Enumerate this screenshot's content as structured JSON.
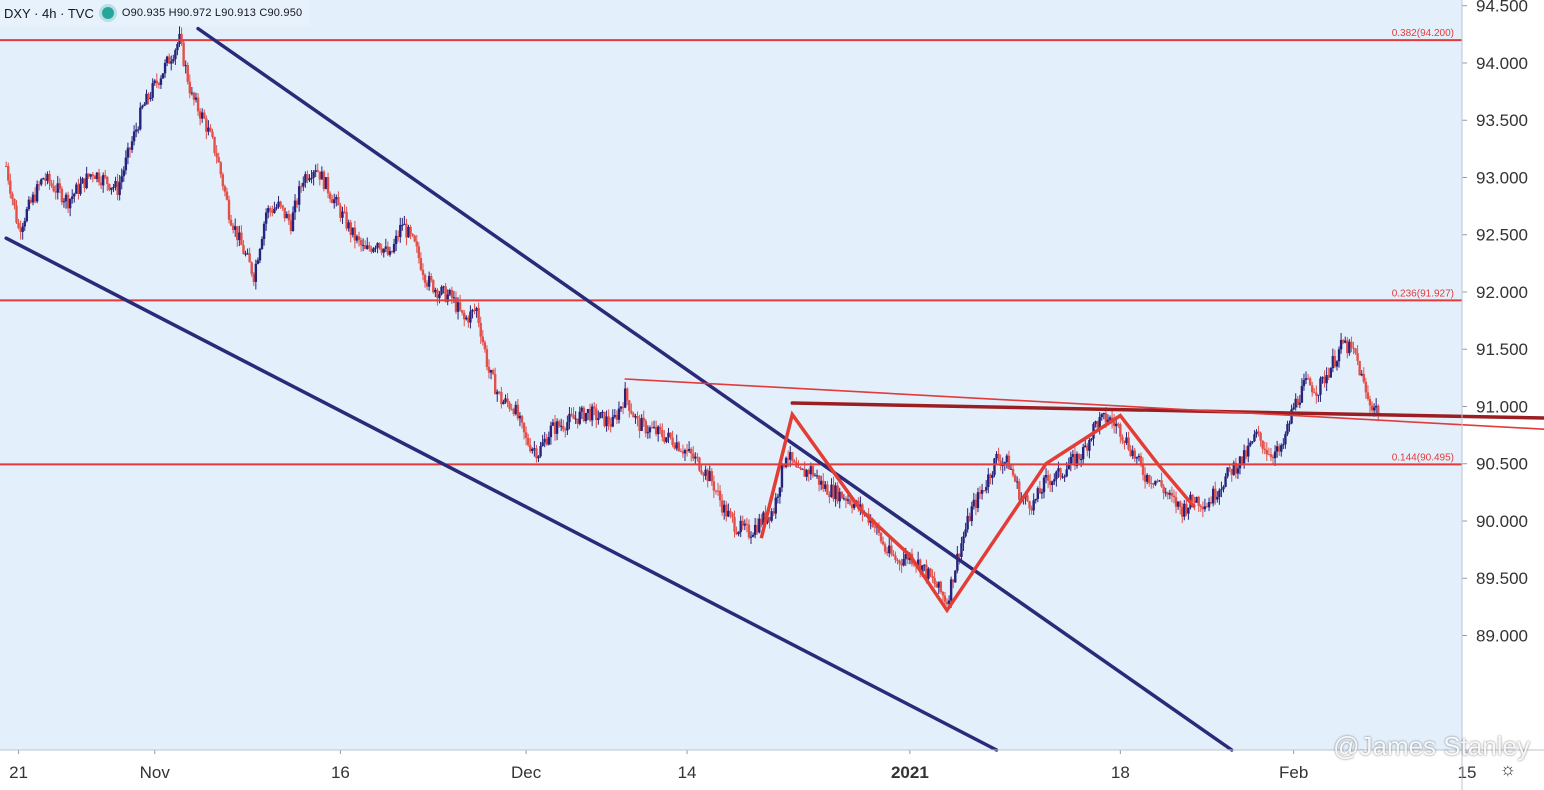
{
  "header": {
    "symbol": "DXY · 4h · TVC",
    "ohlc": "O90.935  H90.972  L90.913  C90.950"
  },
  "watermark": "@James Stanley",
  "colors": {
    "background": "#e3f0fc",
    "bull": "#28237a",
    "bear": "#e2504a",
    "fib": "#e23b3b",
    "channel": "#2b2a78",
    "neckline": "#9b1f22",
    "wedge": "#e33e36"
  },
  "chart_data": {
    "type": "candlestick",
    "symbol": "DXY",
    "timeframe": "4h",
    "ylim": [
      88.0,
      94.55
    ],
    "y_ticks": [
      "94.500",
      "94.000",
      "93.500",
      "93.000",
      "92.500",
      "92.000",
      "91.500",
      "91.000",
      "90.500",
      "90.000",
      "89.500",
      "89.000"
    ],
    "x_ticks": [
      {
        "label": "21",
        "day": -11
      },
      {
        "label": "Nov",
        "day": 0
      },
      {
        "label": "16",
        "day": 15
      },
      {
        "label": "Dec",
        "day": 30
      },
      {
        "label": "14",
        "day": 43
      },
      {
        "label": "2021",
        "day": 61
      },
      {
        "label": "18",
        "day": 78
      },
      {
        "label": "Feb",
        "day": 92
      },
      {
        "label": "15",
        "day": 106
      }
    ],
    "fib_levels": [
      {
        "label": "0.382(94.200)",
        "value": 94.2
      },
      {
        "label": "0.236(91.927)",
        "value": 91.927
      },
      {
        "label": "0.144(90.495)",
        "value": 90.495
      }
    ],
    "trendlines": [
      {
        "name": "channel-upper",
        "from": {
          "day": 3.5,
          "price": 94.3
        },
        "to": {
          "day": 87,
          "price": 88.0
        },
        "style": "channel"
      },
      {
        "name": "channel-lower",
        "from": {
          "day": -12,
          "price": 92.47
        },
        "to": {
          "day": 68,
          "price": 88.0
        },
        "style": "channel"
      },
      {
        "name": "neckline",
        "from": {
          "day": 51.5,
          "price": 91.03
        },
        "to": {
          "day": 121,
          "price": 90.88
        },
        "style": "neckline"
      },
      {
        "name": "thin-resistance",
        "from": {
          "day": 38,
          "price": 91.24
        },
        "to": {
          "day": 121,
          "price": 90.75
        },
        "style": "thin"
      }
    ],
    "wedge_path": [
      {
        "day": 49,
        "price": 89.85
      },
      {
        "day": 51.5,
        "price": 90.93
      },
      {
        "day": 57,
        "price": 90.1
      },
      {
        "day": 61,
        "price": 89.7
      },
      {
        "day": 64,
        "price": 89.22
      },
      {
        "day": 67,
        "price": 89.7
      },
      {
        "day": 72,
        "price": 90.5
      },
      {
        "day": 78,
        "price": 90.92
      },
      {
        "day": 81,
        "price": 90.5
      },
      {
        "day": 84,
        "price": 90.12
      }
    ],
    "price_path": [
      {
        "day": -12,
        "price": 93.1
      },
      {
        "day": -11,
        "price": 92.55
      },
      {
        "day": -9,
        "price": 93.0
      },
      {
        "day": -7,
        "price": 92.8
      },
      {
        "day": -5,
        "price": 93.05
      },
      {
        "day": -3,
        "price": 92.9
      },
      {
        "day": -1,
        "price": 93.6
      },
      {
        "day": 1,
        "price": 94.0
      },
      {
        "day": 2,
        "price": 94.2
      },
      {
        "day": 3,
        "price": 93.7
      },
      {
        "day": 4,
        "price": 93.5
      },
      {
        "day": 5,
        "price": 93.2
      },
      {
        "day": 6,
        "price": 92.7
      },
      {
        "day": 7,
        "price": 92.4
      },
      {
        "day": 8,
        "price": 92.15
      },
      {
        "day": 9,
        "price": 92.7
      },
      {
        "day": 10,
        "price": 92.75
      },
      {
        "day": 11,
        "price": 92.6
      },
      {
        "day": 12,
        "price": 93.0
      },
      {
        "day": 13,
        "price": 93.1
      },
      {
        "day": 14,
        "price": 92.9
      },
      {
        "day": 15,
        "price": 92.7
      },
      {
        "day": 16,
        "price": 92.5
      },
      {
        "day": 17,
        "price": 92.35
      },
      {
        "day": 18,
        "price": 92.45
      },
      {
        "day": 19,
        "price": 92.3
      },
      {
        "day": 20,
        "price": 92.6
      },
      {
        "day": 21,
        "price": 92.4
      },
      {
        "day": 22,
        "price": 92.1
      },
      {
        "day": 23,
        "price": 92.0
      },
      {
        "day": 24,
        "price": 91.95
      },
      {
        "day": 25,
        "price": 91.75
      },
      {
        "day": 26,
        "price": 91.85
      },
      {
        "day": 27,
        "price": 91.3
      },
      {
        "day": 28,
        "price": 91.05
      },
      {
        "day": 29,
        "price": 91.0
      },
      {
        "day": 30,
        "price": 90.7
      },
      {
        "day": 31,
        "price": 90.6
      },
      {
        "day": 32,
        "price": 90.8
      },
      {
        "day": 33,
        "price": 90.85
      },
      {
        "day": 34,
        "price": 90.9
      },
      {
        "day": 35,
        "price": 90.95
      },
      {
        "day": 36,
        "price": 90.9
      },
      {
        "day": 37,
        "price": 90.85
      },
      {
        "day": 38,
        "price": 91.1
      },
      {
        "day": 39,
        "price": 90.85
      },
      {
        "day": 40,
        "price": 90.8
      },
      {
        "day": 41,
        "price": 90.75
      },
      {
        "day": 42,
        "price": 90.7
      },
      {
        "day": 43,
        "price": 90.6
      },
      {
        "day": 44,
        "price": 90.5
      },
      {
        "day": 45,
        "price": 90.35
      },
      {
        "day": 46,
        "price": 90.1
      },
      {
        "day": 47,
        "price": 89.95
      },
      {
        "day": 48,
        "price": 89.9
      },
      {
        "day": 49,
        "price": 90.0
      },
      {
        "day": 50,
        "price": 90.1
      },
      {
        "day": 51,
        "price": 90.6
      },
      {
        "day": 52,
        "price": 90.4
      },
      {
        "day": 53,
        "price": 90.45
      },
      {
        "day": 54,
        "price": 90.3
      },
      {
        "day": 55,
        "price": 90.25
      },
      {
        "day": 56,
        "price": 90.2
      },
      {
        "day": 57,
        "price": 90.1
      },
      {
        "day": 58,
        "price": 90.0
      },
      {
        "day": 59,
        "price": 89.75
      },
      {
        "day": 60,
        "price": 89.65
      },
      {
        "day": 61,
        "price": 89.7
      },
      {
        "day": 62,
        "price": 89.6
      },
      {
        "day": 63,
        "price": 89.45
      },
      {
        "day": 64,
        "price": 89.3
      },
      {
        "day": 65,
        "price": 89.75
      },
      {
        "day": 66,
        "price": 90.1
      },
      {
        "day": 67,
        "price": 90.3
      },
      {
        "day": 68,
        "price": 90.55
      },
      {
        "day": 69,
        "price": 90.5
      },
      {
        "day": 70,
        "price": 90.2
      },
      {
        "day": 71,
        "price": 90.15
      },
      {
        "day": 72,
        "price": 90.35
      },
      {
        "day": 73,
        "price": 90.4
      },
      {
        "day": 74,
        "price": 90.5
      },
      {
        "day": 75,
        "price": 90.6
      },
      {
        "day": 76,
        "price": 90.85
      },
      {
        "day": 77,
        "price": 90.9
      },
      {
        "day": 78,
        "price": 90.8
      },
      {
        "day": 79,
        "price": 90.6
      },
      {
        "day": 80,
        "price": 90.4
      },
      {
        "day": 81,
        "price": 90.35
      },
      {
        "day": 82,
        "price": 90.2
      },
      {
        "day": 83,
        "price": 90.1
      },
      {
        "day": 84,
        "price": 90.2
      },
      {
        "day": 85,
        "price": 90.15
      },
      {
        "day": 86,
        "price": 90.3
      },
      {
        "day": 87,
        "price": 90.45
      },
      {
        "day": 88,
        "price": 90.55
      },
      {
        "day": 89,
        "price": 90.75
      },
      {
        "day": 90,
        "price": 90.6
      },
      {
        "day": 91,
        "price": 90.6
      },
      {
        "day": 92,
        "price": 91.0
      },
      {
        "day": 93,
        "price": 91.2
      },
      {
        "day": 94,
        "price": 91.15
      },
      {
        "day": 95,
        "price": 91.35
      },
      {
        "day": 96,
        "price": 91.55
      },
      {
        "day": 97,
        "price": 91.45
      },
      {
        "day": 98,
        "price": 91.05
      },
      {
        "day": 99,
        "price": 90.95
      }
    ]
  }
}
